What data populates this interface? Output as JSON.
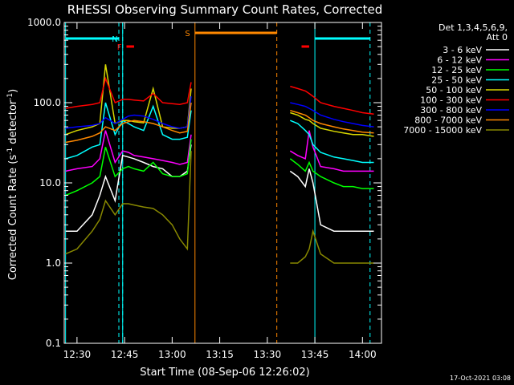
{
  "chart_data": {
    "type": "line",
    "title": "RHESSI Observing Summary Count Rates, Corrected",
    "xlabel": "Start Time (08-Sep-06 12:26:02)",
    "ylabel_main": "Corrected Count Rate (s",
    "ylabel_sup1": "-1",
    "ylabel_mid": " detector",
    "ylabel_sup2": "-1",
    "ylabel_end": ")",
    "yscale": "log",
    "ylim": [
      0.1,
      1000
    ],
    "xlim_minutes": [
      12.433,
      14.1
    ],
    "xticks": [
      {
        "t": 12.5,
        "label": "12:30"
      },
      {
        "t": 12.75,
        "label": "12:45"
      },
      {
        "t": 13.0,
        "label": "13:00"
      },
      {
        "t": 13.25,
        "label": "13:15"
      },
      {
        "t": 13.5,
        "label": "13:30"
      },
      {
        "t": 13.75,
        "label": "13:45"
      },
      {
        "t": 14.0,
        "label": "14:00"
      }
    ],
    "yticks": [
      {
        "v": 0.1,
        "label": "0.1"
      },
      {
        "v": 1,
        "label": "1.0"
      },
      {
        "v": 10,
        "label": "10.0"
      },
      {
        "v": 100,
        "label": "100.0"
      },
      {
        "v": 1000,
        "label": "1000.0"
      }
    ],
    "legend_header": [
      "Det 1,3,4,5,6,9,",
      "Att 0"
    ],
    "legend_position": "top-right",
    "timestamp": "17-Oct-2021 03:08",
    "series": [
      {
        "name": "3 - 6 keV",
        "color": "#ffffff"
      },
      {
        "name": "6 - 12 keV",
        "color": "#ff00ff"
      },
      {
        "name": "12 - 25 keV",
        "color": "#00ff00"
      },
      {
        "name": "25 - 50 keV",
        "color": "#00ffff"
      },
      {
        "name": "50 - 100 keV",
        "color": "#d8d800"
      },
      {
        "name": "100 - 300 keV",
        "color": "#ff0000"
      },
      {
        "name": "300 - 800 keV",
        "color": "#0000ff"
      },
      {
        "name": "800 - 7000 keV",
        "color": "#ff8800"
      },
      {
        "name": "7000 - 15000 keV",
        "color": "#888800"
      }
    ],
    "data_segments": [
      {
        "t": [
          12.44,
          12.5,
          12.58,
          12.62,
          12.65,
          12.7,
          12.74,
          12.77,
          12.8,
          12.85,
          12.9,
          12.95,
          13.0,
          13.04,
          13.08,
          13.1
        ],
        "values": [
          [
            2.5,
            2.5,
            4,
            7,
            12,
            6,
            22,
            21,
            20,
            18,
            16,
            15,
            12,
            12,
            14,
            30
          ],
          [
            14,
            15,
            16,
            20,
            45,
            18,
            25,
            24,
            22,
            21,
            20,
            19,
            18,
            17,
            18,
            40
          ],
          [
            7,
            8,
            10,
            12,
            28,
            12,
            15,
            16,
            15,
            14,
            18,
            13,
            12,
            12,
            13,
            35
          ],
          [
            20,
            22,
            28,
            30,
            100,
            40,
            60,
            55,
            50,
            45,
            90,
            40,
            35,
            35,
            37,
            80
          ],
          [
            40,
            45,
            50,
            55,
            300,
            55,
            60,
            60,
            58,
            56,
            150,
            50,
            48,
            48,
            50,
            150
          ],
          [
            85,
            90,
            95,
            100,
            200,
            100,
            110,
            110,
            108,
            105,
            130,
            100,
            97,
            95,
            100,
            180
          ],
          [
            48,
            50,
            52,
            55,
            65,
            55,
            62,
            68,
            70,
            68,
            62,
            55,
            50,
            48,
            50,
            120
          ],
          [
            32,
            34,
            38,
            42,
            50,
            45,
            55,
            58,
            60,
            58,
            55,
            50,
            45,
            42,
            44,
            100
          ],
          [
            1.3,
            1.5,
            2.5,
            3.5,
            6,
            4,
            5.5,
            5.5,
            5.3,
            5,
            4.8,
            4,
            3,
            2,
            1.5,
            25
          ]
        ]
      },
      {
        "t": [
          13.62,
          13.66,
          13.7,
          13.72,
          13.74,
          13.78,
          13.85,
          13.9,
          13.95,
          14.0,
          14.06
        ],
        "values": [
          [
            14,
            12,
            9,
            15,
            10,
            3,
            2.5,
            2.5,
            2.5,
            2.5,
            2.5
          ],
          [
            25,
            22,
            20,
            45,
            28,
            16,
            15,
            14,
            14,
            14,
            14
          ],
          [
            20,
            17,
            14,
            18,
            14,
            12,
            10,
            9,
            9,
            8.5,
            8.5
          ],
          [
            60,
            55,
            45,
            40,
            30,
            24,
            21,
            20,
            19,
            18,
            18
          ],
          [
            75,
            70,
            62,
            60,
            55,
            48,
            44,
            42,
            40,
            40,
            38
          ],
          [
            160,
            150,
            140,
            130,
            120,
            100,
            90,
            85,
            80,
            75,
            72
          ],
          [
            100,
            95,
            90,
            85,
            80,
            70,
            62,
            58,
            55,
            52,
            50
          ],
          [
            80,
            75,
            70,
            65,
            60,
            55,
            50,
            47,
            45,
            43,
            42
          ],
          [
            1,
            1,
            1.2,
            1.5,
            2.5,
            1.3,
            1,
            1,
            1,
            1,
            1
          ]
        ]
      }
    ],
    "flags": [
      {
        "label": "",
        "color": "#00ffff",
        "t0": 12.44,
        "t1": 12.72
      },
      {
        "label": "N",
        "color": "#00ffff",
        "t0": 12.74,
        "t1": 12.74
      },
      {
        "label": "F",
        "color": "#ff0000",
        "t0": 12.76,
        "t1": 12.8
      },
      {
        "label": "S",
        "color": "#ff8800",
        "t0": 13.12,
        "t1": 13.55
      },
      {
        "label": "",
        "color": "#ff0000",
        "t0": 13.68,
        "t1": 13.72
      },
      {
        "label": "",
        "color": "#00ffff",
        "t0": 13.75,
        "t1": 14.04
      }
    ]
  }
}
